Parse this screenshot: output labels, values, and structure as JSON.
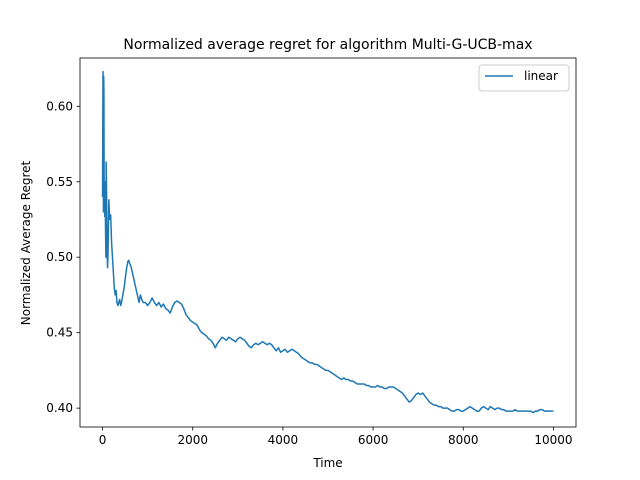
{
  "chart_data": {
    "type": "line",
    "title": "Normalized average regret for algorithm Multi-G-UCB-max",
    "xlabel": "Time",
    "ylabel": "Normalized Average Regret",
    "xlim": [
      -500,
      10500
    ],
    "ylim": [
      0.3875,
      0.632
    ],
    "xticks": [
      0,
      2000,
      4000,
      6000,
      8000,
      10000
    ],
    "xtick_labels": [
      "0",
      "2000",
      "4000",
      "6000",
      "8000",
      "10000"
    ],
    "yticks": [
      0.4,
      0.45,
      0.5,
      0.55,
      0.6
    ],
    "ytick_labels": [
      "0.40",
      "0.45",
      "0.50",
      "0.55",
      "0.60"
    ],
    "grid": false,
    "legend": {
      "position": "top-right"
    },
    "series": [
      {
        "name": "linear",
        "color": "#1f77b4",
        "points": [
          [
            0,
            0.54
          ],
          [
            5,
            0.58
          ],
          [
            10,
            0.623
          ],
          [
            15,
            0.6
          ],
          [
            20,
            0.53
          ],
          [
            25,
            0.62
          ],
          [
            30,
            0.61
          ],
          [
            35,
            0.55
          ],
          [
            40,
            0.535
          ],
          [
            45,
            0.55
          ],
          [
            50,
            0.527
          ],
          [
            55,
            0.54
          ],
          [
            60,
            0.535
          ],
          [
            70,
            0.51
          ],
          [
            75,
            0.5
          ],
          [
            80,
            0.563
          ],
          [
            90,
            0.54
          ],
          [
            100,
            0.51
          ],
          [
            105,
            0.5
          ],
          [
            110,
            0.493
          ],
          [
            120,
            0.5
          ],
          [
            130,
            0.52
          ],
          [
            140,
            0.538
          ],
          [
            150,
            0.53
          ],
          [
            165,
            0.525
          ],
          [
            180,
            0.528
          ],
          [
            200,
            0.51
          ],
          [
            220,
            0.5
          ],
          [
            240,
            0.49
          ],
          [
            260,
            0.48
          ],
          [
            280,
            0.475
          ],
          [
            300,
            0.478
          ],
          [
            320,
            0.47
          ],
          [
            340,
            0.468
          ],
          [
            360,
            0.47
          ],
          [
            380,
            0.472
          ],
          [
            400,
            0.468
          ],
          [
            420,
            0.47
          ],
          [
            450,
            0.475
          ],
          [
            480,
            0.48
          ],
          [
            500,
            0.485
          ],
          [
            530,
            0.492
          ],
          [
            560,
            0.497
          ],
          [
            580,
            0.498
          ],
          [
            600,
            0.496
          ],
          [
            630,
            0.494
          ],
          [
            660,
            0.49
          ],
          [
            690,
            0.486
          ],
          [
            720,
            0.482
          ],
          [
            750,
            0.478
          ],
          [
            780,
            0.474
          ],
          [
            810,
            0.47
          ],
          [
            840,
            0.475
          ],
          [
            870,
            0.472
          ],
          [
            900,
            0.47
          ],
          [
            950,
            0.47
          ],
          [
            1000,
            0.468
          ],
          [
            1050,
            0.47
          ],
          [
            1100,
            0.473
          ],
          [
            1150,
            0.47
          ],
          [
            1200,
            0.468
          ],
          [
            1250,
            0.47
          ],
          [
            1300,
            0.467
          ],
          [
            1350,
            0.469
          ],
          [
            1400,
            0.466
          ],
          [
            1450,
            0.465
          ],
          [
            1500,
            0.463
          ],
          [
            1550,
            0.467
          ],
          [
            1600,
            0.47
          ],
          [
            1650,
            0.471
          ],
          [
            1700,
            0.47
          ],
          [
            1750,
            0.469
          ],
          [
            1800,
            0.466
          ],
          [
            1850,
            0.462
          ],
          [
            1900,
            0.46
          ],
          [
            1950,
            0.458
          ],
          [
            2000,
            0.457
          ],
          [
            2050,
            0.456
          ],
          [
            2100,
            0.455
          ],
          [
            2150,
            0.452
          ],
          [
            2200,
            0.45
          ],
          [
            2250,
            0.449
          ],
          [
            2300,
            0.448
          ],
          [
            2350,
            0.446
          ],
          [
            2400,
            0.445
          ],
          [
            2450,
            0.443
          ],
          [
            2500,
            0.44
          ],
          [
            2550,
            0.443
          ],
          [
            2600,
            0.445
          ],
          [
            2650,
            0.447
          ],
          [
            2700,
            0.446
          ],
          [
            2750,
            0.445
          ],
          [
            2800,
            0.447
          ],
          [
            2850,
            0.446
          ],
          [
            2900,
            0.445
          ],
          [
            2950,
            0.444
          ],
          [
            3000,
            0.446
          ],
          [
            3050,
            0.447
          ],
          [
            3100,
            0.446
          ],
          [
            3150,
            0.445
          ],
          [
            3200,
            0.443
          ],
          [
            3250,
            0.441
          ],
          [
            3300,
            0.44
          ],
          [
            3350,
            0.442
          ],
          [
            3400,
            0.443
          ],
          [
            3450,
            0.442
          ],
          [
            3500,
            0.443
          ],
          [
            3550,
            0.444
          ],
          [
            3600,
            0.443
          ],
          [
            3650,
            0.442
          ],
          [
            3700,
            0.443
          ],
          [
            3750,
            0.442
          ],
          [
            3800,
            0.44
          ],
          [
            3850,
            0.438
          ],
          [
            3900,
            0.44
          ],
          [
            3950,
            0.437
          ],
          [
            4000,
            0.438
          ],
          [
            4050,
            0.439
          ],
          [
            4100,
            0.437
          ],
          [
            4150,
            0.438
          ],
          [
            4200,
            0.439
          ],
          [
            4250,
            0.438
          ],
          [
            4300,
            0.437
          ],
          [
            4350,
            0.436
          ],
          [
            4400,
            0.434
          ],
          [
            4450,
            0.433
          ],
          [
            4500,
            0.432
          ],
          [
            4550,
            0.431
          ],
          [
            4600,
            0.43
          ],
          [
            4650,
            0.43
          ],
          [
            4700,
            0.429
          ],
          [
            4750,
            0.429
          ],
          [
            4800,
            0.428
          ],
          [
            4850,
            0.427
          ],
          [
            4900,
            0.426
          ],
          [
            4950,
            0.425
          ],
          [
            5000,
            0.425
          ],
          [
            5050,
            0.424
          ],
          [
            5100,
            0.423
          ],
          [
            5150,
            0.422
          ],
          [
            5200,
            0.421
          ],
          [
            5250,
            0.42
          ],
          [
            5300,
            0.419
          ],
          [
            5350,
            0.42
          ],
          [
            5400,
            0.419
          ],
          [
            5450,
            0.419
          ],
          [
            5500,
            0.418
          ],
          [
            5550,
            0.418
          ],
          [
            5600,
            0.417
          ],
          [
            5650,
            0.416
          ],
          [
            5700,
            0.416
          ],
          [
            5750,
            0.416
          ],
          [
            5800,
            0.416
          ],
          [
            5850,
            0.415
          ],
          [
            5900,
            0.415
          ],
          [
            5950,
            0.414
          ],
          [
            6000,
            0.414
          ],
          [
            6050,
            0.414
          ],
          [
            6100,
            0.415
          ],
          [
            6150,
            0.414
          ],
          [
            6200,
            0.414
          ],
          [
            6250,
            0.413
          ],
          [
            6300,
            0.413
          ],
          [
            6350,
            0.414
          ],
          [
            6400,
            0.414
          ],
          [
            6450,
            0.414
          ],
          [
            6500,
            0.413
          ],
          [
            6550,
            0.412
          ],
          [
            6600,
            0.411
          ],
          [
            6650,
            0.41
          ],
          [
            6700,
            0.408
          ],
          [
            6750,
            0.406
          ],
          [
            6800,
            0.404
          ],
          [
            6850,
            0.405
          ],
          [
            6900,
            0.407
          ],
          [
            6950,
            0.409
          ],
          [
            7000,
            0.41
          ],
          [
            7050,
            0.409
          ],
          [
            7100,
            0.41
          ],
          [
            7150,
            0.408
          ],
          [
            7200,
            0.406
          ],
          [
            7250,
            0.404
          ],
          [
            7300,
            0.403
          ],
          [
            7350,
            0.402
          ],
          [
            7400,
            0.402
          ],
          [
            7450,
            0.401
          ],
          [
            7500,
            0.401
          ],
          [
            7550,
            0.4
          ],
          [
            7600,
            0.4
          ],
          [
            7650,
            0.4
          ],
          [
            7700,
            0.399
          ],
          [
            7750,
            0.398
          ],
          [
            7800,
            0.398
          ],
          [
            7850,
            0.399
          ],
          [
            7900,
            0.399
          ],
          [
            7950,
            0.398
          ],
          [
            8000,
            0.398
          ],
          [
            8050,
            0.399
          ],
          [
            8100,
            0.4
          ],
          [
            8150,
            0.401
          ],
          [
            8200,
            0.4
          ],
          [
            8250,
            0.399
          ],
          [
            8300,
            0.398
          ],
          [
            8350,
            0.398
          ],
          [
            8400,
            0.4
          ],
          [
            8450,
            0.401
          ],
          [
            8500,
            0.4
          ],
          [
            8550,
            0.399
          ],
          [
            8600,
            0.401
          ],
          [
            8650,
            0.4
          ],
          [
            8700,
            0.399
          ],
          [
            8750,
            0.4
          ],
          [
            8800,
            0.4
          ],
          [
            8850,
            0.399
          ],
          [
            8900,
            0.399
          ],
          [
            8950,
            0.398
          ],
          [
            9000,
            0.398
          ],
          [
            9050,
            0.398
          ],
          [
            9100,
            0.398
          ],
          [
            9150,
            0.399
          ],
          [
            9200,
            0.398
          ],
          [
            9250,
            0.398
          ],
          [
            9300,
            0.398
          ],
          [
            9350,
            0.398
          ],
          [
            9400,
            0.398
          ],
          [
            9450,
            0.398
          ],
          [
            9500,
            0.398
          ],
          [
            9550,
            0.397
          ],
          [
            9600,
            0.398
          ],
          [
            9650,
            0.398
          ],
          [
            9700,
            0.399
          ],
          [
            9750,
            0.399
          ],
          [
            9800,
            0.398
          ],
          [
            9850,
            0.398
          ],
          [
            9900,
            0.398
          ],
          [
            9950,
            0.398
          ],
          [
            10000,
            0.398
          ]
        ]
      }
    ]
  }
}
